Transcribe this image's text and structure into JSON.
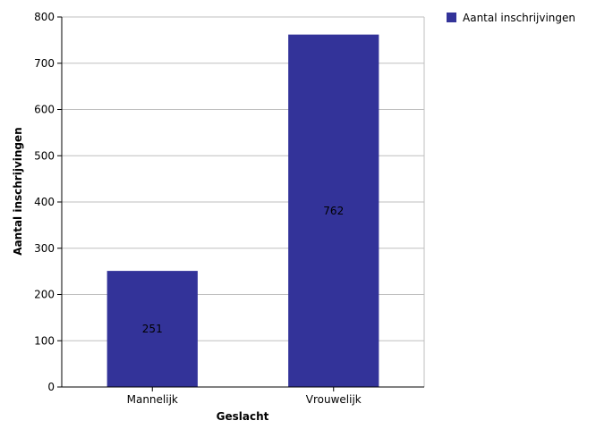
{
  "chart_data": {
    "type": "bar",
    "categories": [
      "Mannelijk",
      "Vrouwelijk"
    ],
    "series": [
      {
        "name": "Aantal inschrijvingen",
        "values": [
          251,
          762
        ],
        "color": "#333399",
        "data_labels": [
          "251",
          "762"
        ]
      }
    ],
    "xlabel": "Geslacht",
    "ylabel": "Aantal inschrijvingen",
    "ylim": [
      0,
      800
    ],
    "yticks": [
      0,
      100,
      200,
      300,
      400,
      500,
      600,
      700,
      800
    ],
    "grid": true,
    "legend": "top-right"
  }
}
